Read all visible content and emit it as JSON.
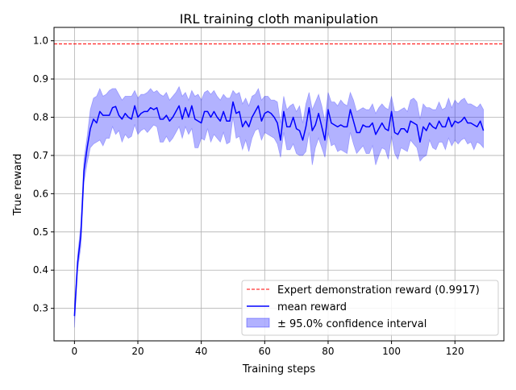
{
  "chart_data": {
    "type": "line",
    "title": "IRL training cloth manipulation",
    "xlabel": "Training steps",
    "ylabel": "True reward",
    "xlim": [
      -6.45,
      135.45
    ],
    "ylim": [
      0.215,
      1.035
    ],
    "xticks": [
      0,
      20,
      40,
      60,
      80,
      100,
      120
    ],
    "yticks": [
      0.3,
      0.4,
      0.5,
      0.6,
      0.7,
      0.8,
      0.9,
      1.0
    ],
    "xtick_labels": [
      "0",
      "20",
      "40",
      "60",
      "80",
      "100",
      "120"
    ],
    "ytick_labels": [
      "0.3",
      "0.4",
      "0.5",
      "0.6",
      "0.7",
      "0.8",
      "0.9",
      "1.0"
    ],
    "grid": true,
    "legend_position": "lower-right",
    "expert_reward": 0.9917,
    "series": [
      {
        "name": "Expert demonstration reward (0.9917)",
        "kind": "hline",
        "color": "#ff0000",
        "style": "dashed",
        "y": 0.9917
      },
      {
        "name": "mean reward",
        "kind": "line",
        "color": "#0000ff",
        "x": [
          0,
          1,
          2,
          3,
          4,
          5,
          6,
          7,
          8,
          9,
          10,
          11,
          12,
          13,
          14,
          15,
          16,
          17,
          18,
          19,
          20,
          21,
          22,
          23,
          24,
          25,
          26,
          27,
          28,
          29,
          30,
          31,
          32,
          33,
          34,
          35,
          36,
          37,
          38,
          39,
          40,
          41,
          42,
          43,
          44,
          45,
          46,
          47,
          48,
          49,
          50,
          51,
          52,
          53,
          54,
          55,
          56,
          57,
          58,
          59,
          60,
          61,
          62,
          63,
          64,
          65,
          66,
          67,
          68,
          69,
          70,
          71,
          72,
          73,
          74,
          75,
          76,
          77,
          78,
          79,
          80,
          81,
          82,
          83,
          84,
          85,
          86,
          87,
          88,
          89,
          90,
          91,
          92,
          93,
          94,
          95,
          96,
          97,
          98,
          99,
          100,
          101,
          102,
          103,
          104,
          105,
          106,
          107,
          108,
          109,
          110,
          111,
          112,
          113,
          114,
          115,
          116,
          117,
          118,
          119,
          120,
          121,
          122,
          123,
          124,
          125,
          126,
          127,
          128,
          129
        ],
        "y": [
          0.28,
          0.42,
          0.49,
          0.66,
          0.72,
          0.77,
          0.795,
          0.785,
          0.815,
          0.805,
          0.805,
          0.805,
          0.825,
          0.828,
          0.805,
          0.795,
          0.81,
          0.8,
          0.795,
          0.83,
          0.8,
          0.81,
          0.815,
          0.815,
          0.825,
          0.82,
          0.825,
          0.795,
          0.795,
          0.805,
          0.79,
          0.8,
          0.815,
          0.83,
          0.795,
          0.825,
          0.8,
          0.83,
          0.795,
          0.79,
          0.785,
          0.815,
          0.815,
          0.8,
          0.815,
          0.8,
          0.79,
          0.815,
          0.79,
          0.79,
          0.84,
          0.81,
          0.815,
          0.775,
          0.79,
          0.775,
          0.8,
          0.815,
          0.83,
          0.79,
          0.81,
          0.815,
          0.81,
          0.8,
          0.785,
          0.74,
          0.815,
          0.775,
          0.775,
          0.8,
          0.77,
          0.765,
          0.74,
          0.775,
          0.825,
          0.765,
          0.78,
          0.81,
          0.775,
          0.74,
          0.82,
          0.785,
          0.78,
          0.775,
          0.78,
          0.775,
          0.775,
          0.82,
          0.79,
          0.76,
          0.76,
          0.78,
          0.775,
          0.775,
          0.785,
          0.755,
          0.77,
          0.785,
          0.77,
          0.765,
          0.815,
          0.76,
          0.755,
          0.77,
          0.77,
          0.76,
          0.79,
          0.785,
          0.78,
          0.735,
          0.775,
          0.765,
          0.785,
          0.775,
          0.77,
          0.79,
          0.775,
          0.775,
          0.8,
          0.775,
          0.79,
          0.785,
          0.79,
          0.8,
          0.785,
          0.785,
          0.78,
          0.775,
          0.79,
          0.765
        ],
        "ci_lower": [
          0.25,
          0.4,
          0.46,
          0.63,
          0.68,
          0.72,
          0.73,
          0.735,
          0.74,
          0.725,
          0.745,
          0.745,
          0.775,
          0.755,
          0.765,
          0.735,
          0.755,
          0.745,
          0.75,
          0.78,
          0.755,
          0.765,
          0.77,
          0.76,
          0.77,
          0.78,
          0.775,
          0.735,
          0.735,
          0.75,
          0.735,
          0.745,
          0.76,
          0.775,
          0.745,
          0.775,
          0.755,
          0.77,
          0.72,
          0.72,
          0.745,
          0.74,
          0.77,
          0.735,
          0.755,
          0.745,
          0.735,
          0.76,
          0.73,
          0.735,
          0.8,
          0.745,
          0.75,
          0.715,
          0.74,
          0.71,
          0.745,
          0.765,
          0.77,
          0.74,
          0.76,
          0.755,
          0.75,
          0.745,
          0.73,
          0.695,
          0.76,
          0.715,
          0.715,
          0.73,
          0.705,
          0.7,
          0.7,
          0.71,
          0.76,
          0.675,
          0.72,
          0.745,
          0.72,
          0.695,
          0.76,
          0.725,
          0.73,
          0.71,
          0.715,
          0.71,
          0.705,
          0.76,
          0.73,
          0.705,
          0.715,
          0.725,
          0.705,
          0.705,
          0.725,
          0.675,
          0.7,
          0.72,
          0.715,
          0.69,
          0.75,
          0.705,
          0.69,
          0.72,
          0.715,
          0.71,
          0.74,
          0.73,
          0.72,
          0.685,
          0.695,
          0.7,
          0.74,
          0.72,
          0.715,
          0.735,
          0.735,
          0.715,
          0.745,
          0.725,
          0.74,
          0.73,
          0.74,
          0.745,
          0.73,
          0.735,
          0.715,
          0.735,
          0.73,
          0.72
        ],
        "ci_upper": [
          0.31,
          0.44,
          0.52,
          0.69,
          0.75,
          0.82,
          0.85,
          0.855,
          0.875,
          0.855,
          0.86,
          0.87,
          0.875,
          0.875,
          0.86,
          0.845,
          0.855,
          0.855,
          0.855,
          0.87,
          0.85,
          0.86,
          0.86,
          0.865,
          0.875,
          0.865,
          0.87,
          0.86,
          0.855,
          0.865,
          0.845,
          0.855,
          0.865,
          0.88,
          0.855,
          0.865,
          0.845,
          0.87,
          0.855,
          0.86,
          0.845,
          0.865,
          0.87,
          0.86,
          0.87,
          0.855,
          0.845,
          0.86,
          0.85,
          0.85,
          0.87,
          0.86,
          0.865,
          0.835,
          0.85,
          0.83,
          0.855,
          0.86,
          0.875,
          0.845,
          0.855,
          0.855,
          0.845,
          0.845,
          0.84,
          0.785,
          0.855,
          0.82,
          0.83,
          0.835,
          0.815,
          0.83,
          0.785,
          0.835,
          0.865,
          0.82,
          0.84,
          0.86,
          0.83,
          0.79,
          0.865,
          0.84,
          0.84,
          0.83,
          0.845,
          0.835,
          0.83,
          0.865,
          0.845,
          0.815,
          0.82,
          0.825,
          0.82,
          0.82,
          0.835,
          0.81,
          0.825,
          0.835,
          0.825,
          0.82,
          0.855,
          0.815,
          0.815,
          0.82,
          0.825,
          0.815,
          0.845,
          0.85,
          0.84,
          0.795,
          0.835,
          0.825,
          0.825,
          0.82,
          0.82,
          0.84,
          0.82,
          0.825,
          0.85,
          0.825,
          0.845,
          0.835,
          0.845,
          0.85,
          0.835,
          0.835,
          0.83,
          0.825,
          0.835,
          0.82
        ]
      },
      {
        "name": "± 95.0% confidence interval",
        "kind": "band",
        "color": "#0000ff",
        "opacity": 0.3
      }
    ]
  }
}
